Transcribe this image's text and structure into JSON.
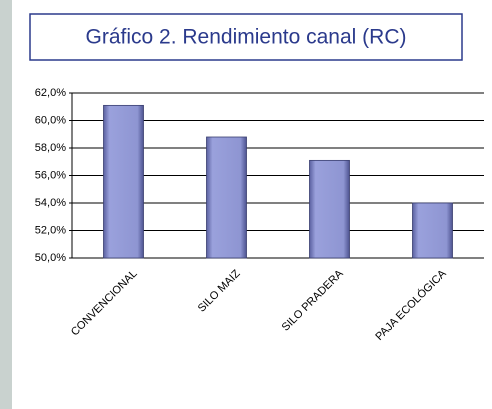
{
  "chart_data": {
    "type": "bar",
    "title": "Gráfico 2. Rendimiento canal (RC)",
    "categories": [
      "CONVENCIONAL",
      "SILO MAIZ",
      "SILO PRADERA",
      "PAJA ECOLÓGICA"
    ],
    "values": [
      61.1,
      58.8,
      57.1,
      54.0
    ],
    "color": "#8e95d2",
    "ylim": [
      50,
      62
    ],
    "yticks": [
      {
        "value": 50,
        "label": "50,0%"
      },
      {
        "value": 52,
        "label": "52,0%"
      },
      {
        "value": 54,
        "label": "54,0%"
      },
      {
        "value": 56,
        "label": "56,0%"
      },
      {
        "value": 58,
        "label": "58,0%"
      },
      {
        "value": 60,
        "label": "60,0%"
      },
      {
        "value": 62,
        "label": "62,0%"
      }
    ],
    "grid": true
  }
}
